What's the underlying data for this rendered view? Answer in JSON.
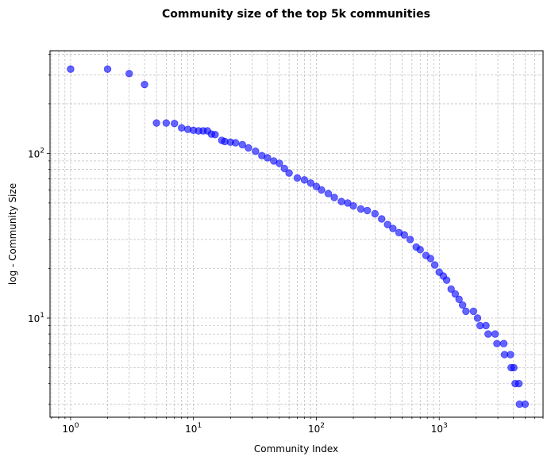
{
  "chart_data": {
    "type": "scatter",
    "title": "Community size of the top 5k communities",
    "xlabel": "Community Index",
    "ylabel": "log - Community Size",
    "xscale": "log",
    "yscale": "log",
    "xlim": [
      0.68,
      7000
    ],
    "ylim": [
      2.5,
      420
    ],
    "grid": true,
    "marker_color": "#0000ff",
    "x_tick_labels": [
      "10^0",
      "10^1",
      "10^2",
      "10^3"
    ],
    "y_tick_labels": [
      "10^1",
      "10^2"
    ],
    "series": [
      {
        "points": [
          [
            1,
            325
          ],
          [
            2,
            325
          ],
          [
            3,
            305
          ],
          [
            4,
            262
          ],
          [
            5,
            153
          ],
          [
            6,
            153
          ],
          [
            7,
            152
          ],
          [
            8,
            143
          ],
          [
            9,
            140
          ],
          [
            10,
            138
          ],
          [
            11,
            137
          ],
          [
            12,
            137
          ],
          [
            13,
            137
          ],
          [
            14,
            131
          ],
          [
            15,
            130
          ],
          [
            17,
            120
          ],
          [
            18,
            118
          ],
          [
            20,
            117
          ],
          [
            22,
            116
          ],
          [
            25,
            113
          ],
          [
            28,
            108
          ],
          [
            32,
            103
          ],
          [
            36,
            97
          ],
          [
            40,
            94
          ],
          [
            45,
            90
          ],
          [
            50,
            87
          ],
          [
            55,
            81
          ],
          [
            60,
            76
          ],
          [
            70,
            71
          ],
          [
            80,
            69
          ],
          [
            90,
            66
          ],
          [
            100,
            63
          ],
          [
            110,
            60
          ],
          [
            125,
            57
          ],
          [
            140,
            54
          ],
          [
            160,
            51
          ],
          [
            180,
            50
          ],
          [
            200,
            48
          ],
          [
            230,
            46
          ],
          [
            260,
            45
          ],
          [
            300,
            43
          ],
          [
            340,
            40
          ],
          [
            380,
            37
          ],
          [
            420,
            35
          ],
          [
            470,
            33
          ],
          [
            520,
            32
          ],
          [
            580,
            30
          ],
          [
            650,
            27
          ],
          [
            700,
            26
          ],
          [
            780,
            24
          ],
          [
            850,
            23
          ],
          [
            920,
            21
          ],
          [
            1000,
            19
          ],
          [
            1080,
            18
          ],
          [
            1150,
            17
          ],
          [
            1250,
            15
          ],
          [
            1350,
            14
          ],
          [
            1450,
            13
          ],
          [
            1550,
            12
          ],
          [
            1650,
            11
          ],
          [
            1900,
            11
          ],
          [
            2050,
            10
          ],
          [
            2150,
            9
          ],
          [
            2400,
            9
          ],
          [
            2500,
            8
          ],
          [
            2850,
            8
          ],
          [
            2950,
            7
          ],
          [
            3350,
            7
          ],
          [
            3400,
            6
          ],
          [
            3800,
            6
          ],
          [
            3850,
            5
          ],
          [
            4050,
            5
          ],
          [
            4150,
            4
          ],
          [
            4450,
            4
          ],
          [
            4500,
            3
          ],
          [
            5000,
            3
          ]
        ]
      }
    ]
  }
}
